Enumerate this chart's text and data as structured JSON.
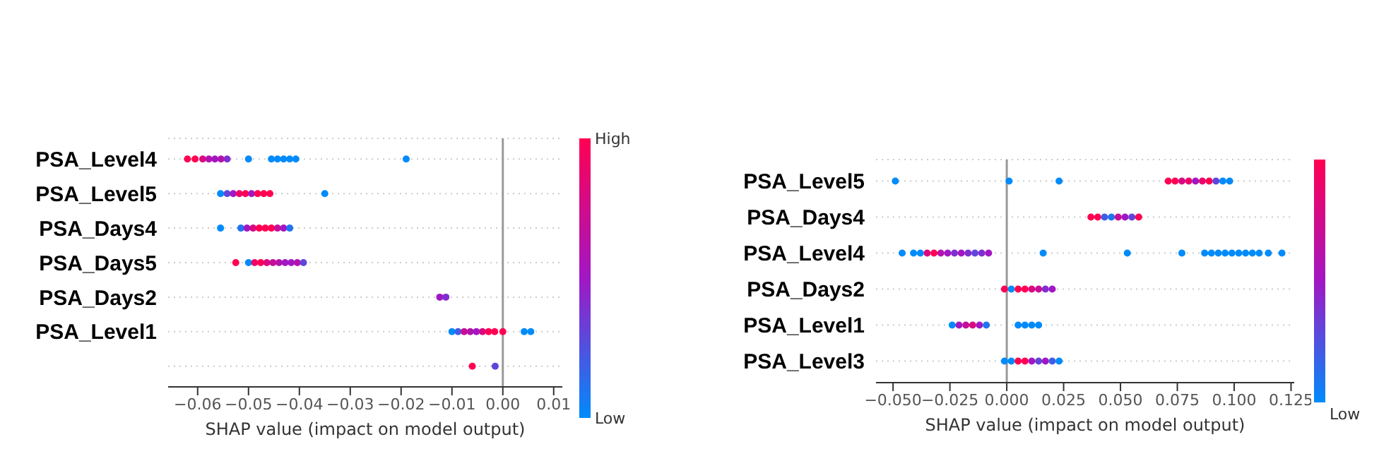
{
  "chart_data": [
    {
      "type": "scatter",
      "orientation": "horizontal",
      "xlabel": "SHAP value (impact on model output)",
      "categories": [
        "PSA_Level4",
        "PSA_Level5",
        "PSA_Days4",
        "PSA_Days5",
        "PSA_Days2",
        "PSA_Level1",
        null
      ],
      "series": [
        {
          "x": [
            "PSA_Level4",
            "PSA_Level4",
            "PSA_Level4",
            "PSA_Level4",
            "PSA_Level4",
            "PSA_Level4",
            "PSA_Level4",
            "PSA_Level4",
            "PSA_Level4",
            "PSA_Level4",
            "PSA_Level4",
            "PSA_Level4",
            "PSA_Level4",
            "PSA_Level4"
          ],
          "values": [
            -0.062,
            -0.0605,
            -0.059,
            -0.0578,
            -0.0566,
            -0.0554,
            -0.0542,
            -0.05,
            -0.0455,
            -0.0443,
            -0.0431,
            -0.0419,
            -0.0407,
            -0.019
          ],
          "colors": [
            "#ff0052",
            "#ff0052",
            "#d90980",
            "#b412ad",
            "#a117c4",
            "#b412ad",
            "#812ecf",
            "#008bfb",
            "#008bfb",
            "#008bfb",
            "#008bfb",
            "#008bfb",
            "#008bfb",
            "#008bfb"
          ]
        },
        {
          "x": [
            "PSA_Level5",
            "PSA_Level5",
            "PSA_Level5",
            "PSA_Level5",
            "PSA_Level5",
            "PSA_Level5",
            "PSA_Level5",
            "PSA_Level5",
            "PSA_Level5",
            "PSA_Level5"
          ],
          "values": [
            -0.0555,
            -0.0542,
            -0.053,
            -0.0518,
            -0.0506,
            -0.0494,
            -0.0482,
            -0.047,
            -0.0458,
            -0.035
          ],
          "colors": [
            "#008bfb",
            "#6145da",
            "#a117c4",
            "#ec0569",
            "#ff0052",
            "#a117c4",
            "#ff0052",
            "#ff0052",
            "#ff0052",
            "#008bfb"
          ]
        },
        {
          "x": [
            "PSA_Days4",
            "PSA_Days4",
            "PSA_Days4",
            "PSA_Days4",
            "PSA_Days4",
            "PSA_Days4",
            "PSA_Days4",
            "PSA_Days4",
            "PSA_Days4",
            "PSA_Days4"
          ],
          "values": [
            -0.0555,
            -0.0515,
            -0.0503,
            -0.0491,
            -0.0479,
            -0.0467,
            -0.0455,
            -0.0443,
            -0.0431,
            -0.0419
          ],
          "colors": [
            "#008bfb",
            "#2074f0",
            "#a117c4",
            "#d90980",
            "#ff0052",
            "#ff0052",
            "#ff0052",
            "#c70e96",
            "#a117c4",
            "#2074f0"
          ]
        },
        {
          "x": [
            "PSA_Days5",
            "PSA_Days5",
            "PSA_Days5",
            "PSA_Days5",
            "PSA_Days5",
            "PSA_Days5",
            "PSA_Days5",
            "PSA_Days5",
            "PSA_Days5",
            "PSA_Days5",
            "PSA_Days5"
          ],
          "values": [
            -0.0525,
            -0.05,
            -0.0488,
            -0.0476,
            -0.0464,
            -0.0452,
            -0.044,
            -0.0428,
            -0.0416,
            -0.0404,
            -0.0392
          ],
          "colors": [
            "#ff0052",
            "#008bfb",
            "#ec0569",
            "#ff0052",
            "#d90980",
            "#c70e96",
            "#b412ad",
            "#a117c4",
            "#a117c4",
            "#b412ad",
            "#6145da"
          ]
        },
        {
          "x": [
            "PSA_Days2",
            "PSA_Days2"
          ],
          "values": [
            -0.0124,
            -0.0112
          ],
          "colors": [
            "#a117c4",
            "#812ecf"
          ]
        },
        {
          "x": [
            "PSA_Level1",
            "PSA_Level1",
            "PSA_Level1",
            "PSA_Level1",
            "PSA_Level1",
            "PSA_Level1",
            "PSA_Level1",
            "PSA_Level1",
            "PSA_Level1",
            "PSA_Level1",
            "PSA_Level1"
          ],
          "values": [
            -0.01,
            -0.0088,
            -0.0076,
            -0.0064,
            -0.0052,
            -0.004,
            -0.0028,
            -0.0016,
            0,
            0.0042,
            0.0055
          ],
          "colors": [
            "#008bfb",
            "#405de5",
            "#c70e96",
            "#b412ad",
            "#a117c4",
            "#d90980",
            "#ff0052",
            "#ff0052",
            "#ff0052",
            "#008bfb",
            "#008bfb"
          ]
        },
        {
          "x": [
            null,
            null
          ],
          "values": [
            -0.006,
            -0.0015
          ],
          "colors": [
            "#ff0052",
            "#6145da"
          ]
        }
      ],
      "xlim": [
        -0.0658,
        0.0117
      ],
      "xticks": [
        {
          "value": -0.06,
          "label": "−0.06"
        },
        {
          "value": -0.05,
          "label": "−0.05"
        },
        {
          "value": -0.04,
          "label": "−0.04"
        },
        {
          "value": -0.03,
          "label": "−0.03"
        },
        {
          "value": -0.02,
          "label": "−0.02"
        },
        {
          "value": -0.01,
          "label": "−0.01"
        },
        {
          "value": 0,
          "label": "0.00"
        },
        {
          "value": 0.01,
          "label": "0.01"
        }
      ],
      "annotations": [
        "High",
        "Low"
      ],
      "ref_lines": [
        {
          "axis": "x",
          "value": 0,
          "color": "#999999"
        }
      ],
      "grid": "y"
    },
    {
      "type": "scatter",
      "orientation": "horizontal",
      "xlabel": "SHAP value (impact on model output)",
      "categories": [
        "PSA_Level5",
        "PSA_Days4",
        "PSA_Level4",
        "PSA_Days2",
        "PSA_Level1",
        "PSA_Level3"
      ],
      "series": [
        {
          "x": [
            "PSA_Level5",
            "PSA_Level5",
            "PSA_Level5",
            "PSA_Level5",
            "PSA_Level5",
            "PSA_Level5",
            "PSA_Level5",
            "PSA_Level5",
            "PSA_Level5",
            "PSA_Level5",
            "PSA_Level5",
            "PSA_Level5",
            "PSA_Level5"
          ],
          "values": [
            -0.049,
            0.001,
            0.023,
            0.071,
            0.074,
            0.077,
            0.08,
            0.083,
            0.086,
            0.089,
            0.092,
            0.095,
            0.098
          ],
          "colors": [
            "#008bfb",
            "#008bfb",
            "#008bfb",
            "#ff0052",
            "#ff0052",
            "#d90980",
            "#ec0569",
            "#a117c4",
            "#ec0569",
            "#ff0052",
            "#6145da",
            "#008bfb",
            "#008bfb"
          ]
        },
        {
          "x": [
            "PSA_Days4",
            "PSA_Days4",
            "PSA_Days4",
            "PSA_Days4",
            "PSA_Days4",
            "PSA_Days4",
            "PSA_Days4",
            "PSA_Days4"
          ],
          "values": [
            0.037,
            0.04,
            0.043,
            0.046,
            0.049,
            0.052,
            0.055,
            0.058
          ],
          "colors": [
            "#ff0052",
            "#ff0052",
            "#405de5",
            "#2074f0",
            "#c70e96",
            "#a117c4",
            "#6145da",
            "#ff0052"
          ]
        },
        {
          "x": [
            "PSA_Level4",
            "PSA_Level4",
            "PSA_Level4",
            "PSA_Level4",
            "PSA_Level4",
            "PSA_Level4",
            "PSA_Level4",
            "PSA_Level4",
            "PSA_Level4",
            "PSA_Level4",
            "PSA_Level4",
            "PSA_Level4",
            "PSA_Level4",
            "PSA_Level4",
            "PSA_Level4",
            "PSA_Level4",
            "PSA_Level4",
            "PSA_Level4",
            "PSA_Level4",
            "PSA_Level4",
            "PSA_Level4",
            "PSA_Level4",
            "PSA_Level4",
            "PSA_Level4",
            "PSA_Level4",
            "PSA_Level4",
            "PSA_Level4"
          ],
          "values": [
            -0.046,
            -0.041,
            -0.038,
            -0.035,
            -0.032,
            -0.029,
            -0.026,
            -0.023,
            -0.02,
            -0.017,
            -0.014,
            -0.011,
            -0.008,
            0.016,
            0.053,
            0.077,
            0.087,
            0.09,
            0.093,
            0.096,
            0.099,
            0.102,
            0.105,
            0.108,
            0.111,
            0.115,
            0.121
          ],
          "colors": [
            "#008bfb",
            "#008bfb",
            "#008bfb",
            "#d90980",
            "#ff0052",
            "#b412ad",
            "#a117c4",
            "#812ecf",
            "#a117c4",
            "#812ecf",
            "#6145da",
            "#812ecf",
            "#a117c4",
            "#008bfb",
            "#008bfb",
            "#008bfb",
            "#008bfb",
            "#008bfb",
            "#008bfb",
            "#008bfb",
            "#008bfb",
            "#008bfb",
            "#008bfb",
            "#008bfb",
            "#008bfb",
            "#008bfb",
            "#008bfb"
          ]
        },
        {
          "x": [
            "PSA_Days2",
            "PSA_Days2",
            "PSA_Days2",
            "PSA_Days2",
            "PSA_Days2",
            "PSA_Days2",
            "PSA_Days2",
            "PSA_Days2"
          ],
          "values": [
            -0.001,
            0.002,
            0.005,
            0.008,
            0.011,
            0.014,
            0.017,
            0.02
          ],
          "colors": [
            "#ff0052",
            "#008bfb",
            "#ff0052",
            "#ff0052",
            "#d90980",
            "#c70e96",
            "#812ecf",
            "#a117c4"
          ]
        },
        {
          "x": [
            "PSA_Level1",
            "PSA_Level1",
            "PSA_Level1",
            "PSA_Level1",
            "PSA_Level1",
            "PSA_Level1",
            "PSA_Level1",
            "PSA_Level1",
            "PSA_Level1",
            "PSA_Level1"
          ],
          "values": [
            -0.024,
            -0.021,
            -0.018,
            -0.015,
            -0.012,
            -0.009,
            0.005,
            0.008,
            0.011,
            0.014
          ],
          "colors": [
            "#008bfb",
            "#a117c4",
            "#c70e96",
            "#d90980",
            "#a117c4",
            "#2074f0",
            "#008bfb",
            "#008bfb",
            "#008bfb",
            "#008bfb"
          ]
        },
        {
          "x": [
            "PSA_Level3",
            "PSA_Level3",
            "PSA_Level3",
            "PSA_Level3",
            "PSA_Level3",
            "PSA_Level3",
            "PSA_Level3",
            "PSA_Level3",
            "PSA_Level3"
          ],
          "values": [
            -0.001,
            0.002,
            0.005,
            0.008,
            0.011,
            0.014,
            0.017,
            0.02,
            0.023
          ],
          "colors": [
            "#008bfb",
            "#008bfb",
            "#ff0052",
            "#ff0052",
            "#a117c4",
            "#6145da",
            "#a117c4",
            "#405de5",
            "#008bfb"
          ]
        }
      ],
      "xlim": [
        -0.0575,
        0.1264
      ],
      "xticks": [
        {
          "value": -0.05,
          "label": "−0.050"
        },
        {
          "value": -0.025,
          "label": "−0.025"
        },
        {
          "value": 0,
          "label": "0.000"
        },
        {
          "value": 0.025,
          "label": "0.025"
        },
        {
          "value": 0.05,
          "label": "0.050"
        },
        {
          "value": 0.075,
          "label": "0.075"
        },
        {
          "value": 0.1,
          "label": "0.100"
        },
        {
          "value": 0.125,
          "label": "0.125"
        }
      ],
      "annotations": [
        "Low"
      ],
      "ref_lines": [
        {
          "axis": "x",
          "value": 0,
          "color": "#999999"
        }
      ],
      "grid": "y"
    }
  ]
}
